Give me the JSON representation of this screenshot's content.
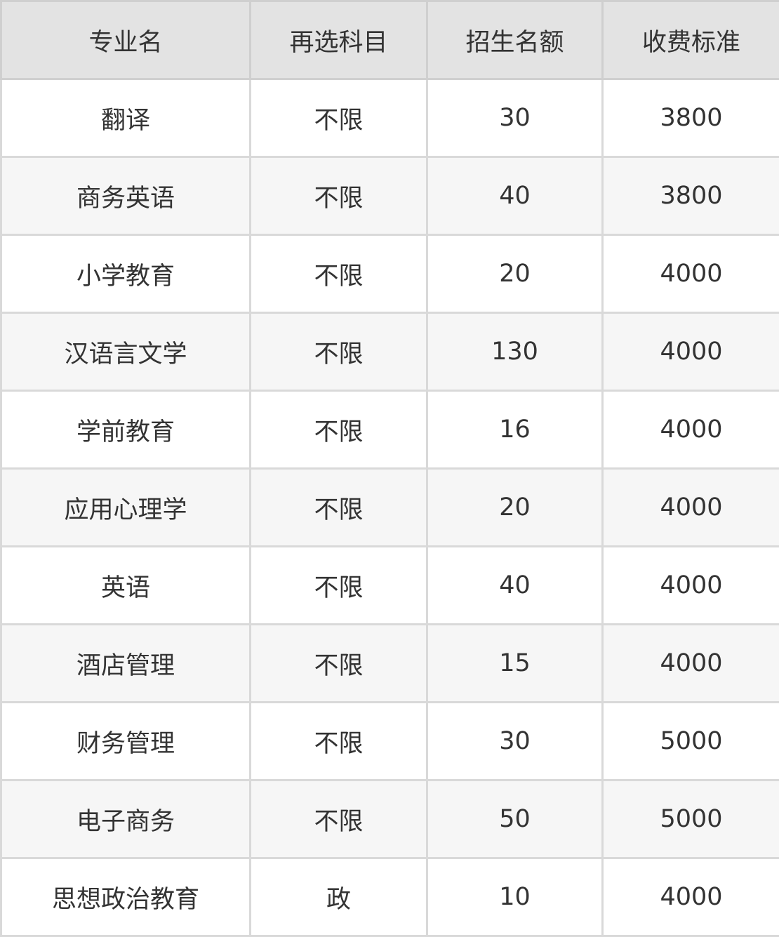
{
  "headers": [
    "专业名",
    "再选科目",
    "招生名额",
    "收费标准"
  ],
  "rows": [
    [
      "翻译",
      "不限",
      "30",
      "3800"
    ],
    [
      "商务英语",
      "不限",
      "40",
      "3800"
    ],
    [
      "小学教育",
      "不限",
      "20",
      "4000"
    ],
    [
      "汉语言文学",
      "不限",
      "130",
      "4000"
    ],
    [
      "学前教育",
      "不限",
      "16",
      "4000"
    ],
    [
      "应用心理学",
      "不限",
      "20",
      "4000"
    ],
    [
      "英语",
      "不限",
      "40",
      "4000"
    ],
    [
      "酒店管理",
      "不限",
      "15",
      "4000"
    ],
    [
      "财务管理",
      "不限",
      "30",
      "5000"
    ],
    [
      "电子商务",
      "不限",
      "50",
      "5000"
    ],
    [
      "思想政治教育",
      "政",
      "10",
      "4000"
    ]
  ]
}
